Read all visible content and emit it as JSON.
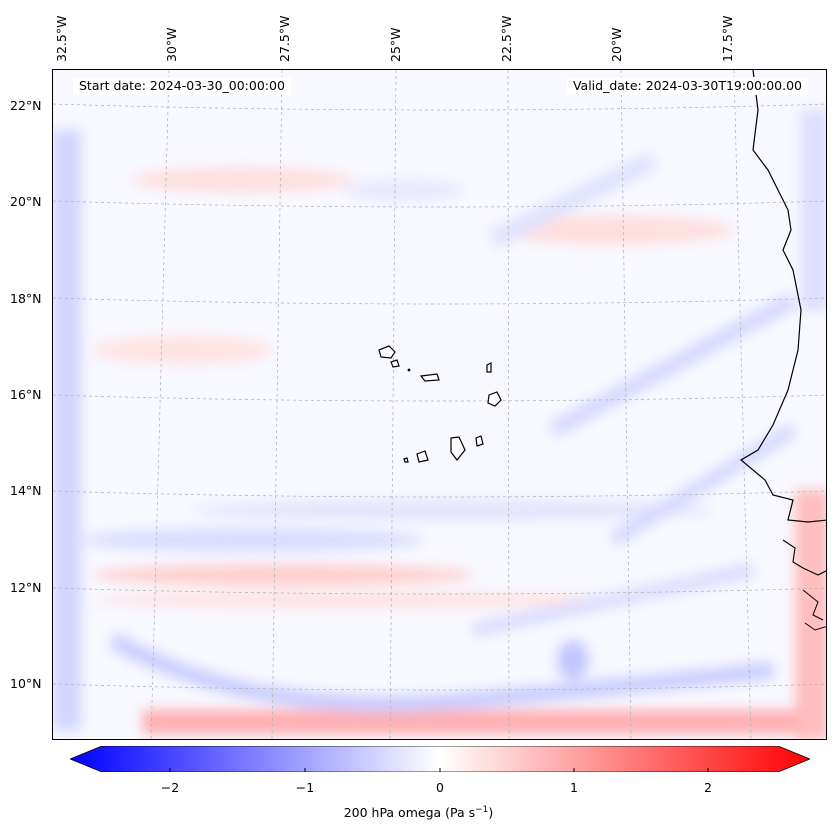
{
  "header": {
    "start_date": "Start date: 2024-03-30_00:00:00",
    "valid_date": "Valid_date: 2024-03-30T19:00:00.00"
  },
  "map": {
    "region": "Eastern Atlantic / Cape Verde / West Africa coast",
    "longitude_labels": [
      "32.5°W",
      "30°W",
      "27.5°W",
      "25°W",
      "22.5°W",
      "20°W",
      "17.5°W"
    ],
    "latitude_labels": [
      "22°N",
      "20°N",
      "18°N",
      "16°N",
      "14°N",
      "12°N",
      "10°N"
    ],
    "field": "200 hPa omega"
  },
  "colorbar": {
    "ticks": [
      "−2",
      "−1",
      "0",
      "1",
      "2"
    ],
    "label_main": "200 hPa omega (Pa s",
    "label_exp": "−1",
    "label_close": ")",
    "min_color": "#0000ff",
    "mid_color": "#ffffff",
    "max_color": "#ff0000"
  }
}
